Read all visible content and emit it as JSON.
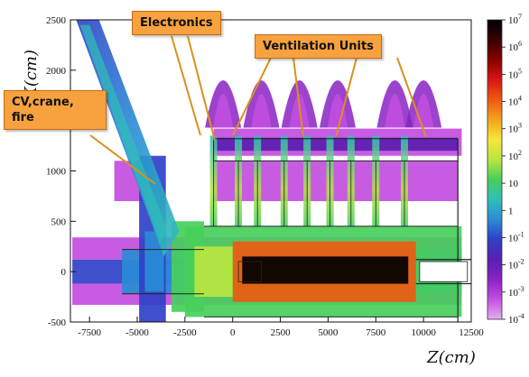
{
  "annotations": {
    "electronics": "Electronics",
    "ventilation": "Ventilation Units",
    "cv_crane_fire": "CV,crane,\nfire"
  },
  "colors": {
    "callout_fill": "#f7a23f",
    "callout_border": "#c56c12",
    "arrow": "#d9911c"
  },
  "chart_data": {
    "type": "heatmap",
    "title": "",
    "xlabel": "Z(cm)",
    "ylabel": "X(cm)",
    "xlim": [
      -8500,
      12500
    ],
    "ylim": [
      -500,
      2500
    ],
    "xticks": [
      -7500,
      -5000,
      -2500,
      0,
      2500,
      5000,
      7500,
      10000,
      12500
    ],
    "yticks": [
      -500,
      0,
      500,
      1000,
      1500,
      2000,
      2500
    ],
    "colorbar": {
      "scale": "log",
      "labels": [
        "10^7",
        "10^6",
        "10^5",
        "10^4",
        "10^3",
        "10^2",
        "10",
        "1",
        "10^-1",
        "10^-2",
        "10^-3",
        "10^-4"
      ],
      "colors": [
        "#000000",
        "#3a0000",
        "#8a0000",
        "#d81616",
        "#ee5a10",
        "#f4a21e",
        "#f7e63a",
        "#b8e640",
        "#48cf5b",
        "#2fbfb8",
        "#2b8bd6",
        "#3040c8",
        "#5a1fb0",
        "#8a22c4",
        "#c24ee0",
        "#e6aef2"
      ]
    },
    "regions": [
      {
        "z": [
          -8400,
          12000
        ],
        "x": [
          -120,
          120
        ],
        "level": "10^-1"
      },
      {
        "z": [
          -8400,
          12000
        ],
        "x": [
          -330,
          -120
        ],
        "level": "10^-3"
      },
      {
        "z": [
          -8400,
          12000
        ],
        "x": [
          120,
          340
        ],
        "level": "10^-3"
      },
      {
        "z": [
          -5800,
          12000
        ],
        "x": [
          -220,
          220
        ],
        "level": "1"
      },
      {
        "z": [
          -2500,
          12000
        ],
        "x": [
          -450,
          450
        ],
        "level": "10"
      },
      {
        "z": [
          0,
          9600
        ],
        "x": [
          -300,
          300
        ],
        "level": "10^4"
      },
      {
        "z": [
          500,
          9200
        ],
        "x": [
          -120,
          150
        ],
        "level": "10^7"
      },
      {
        "z": [
          -1000,
          12000
        ],
        "x": [
          1150,
          1420
        ],
        "level": "10^-3"
      },
      {
        "z": [
          -1000,
          11800
        ],
        "x": [
          1200,
          1330
        ],
        "level": "10^-2"
      },
      {
        "z": [
          -1000,
          11800
        ],
        "x": [
          700,
          1100
        ],
        "level": "10^-3"
      },
      {
        "z": [
          -6200,
          -4400
        ],
        "x": [
          700,
          1100
        ],
        "level": "10^-3"
      },
      {
        "z": [
          -4900,
          -3500
        ],
        "x": [
          -500,
          1150
        ],
        "level": "10^-1"
      },
      {
        "z": [
          -4600,
          -3600
        ],
        "x": [
          -200,
          400
        ],
        "level": "1"
      },
      {
        "z": [
          -3200,
          -1500
        ],
        "x": [
          -400,
          500
        ],
        "level": "10"
      },
      {
        "z": [
          -2000,
          0
        ],
        "x": [
          -250,
          250
        ],
        "level": "10^2"
      }
    ]
  }
}
